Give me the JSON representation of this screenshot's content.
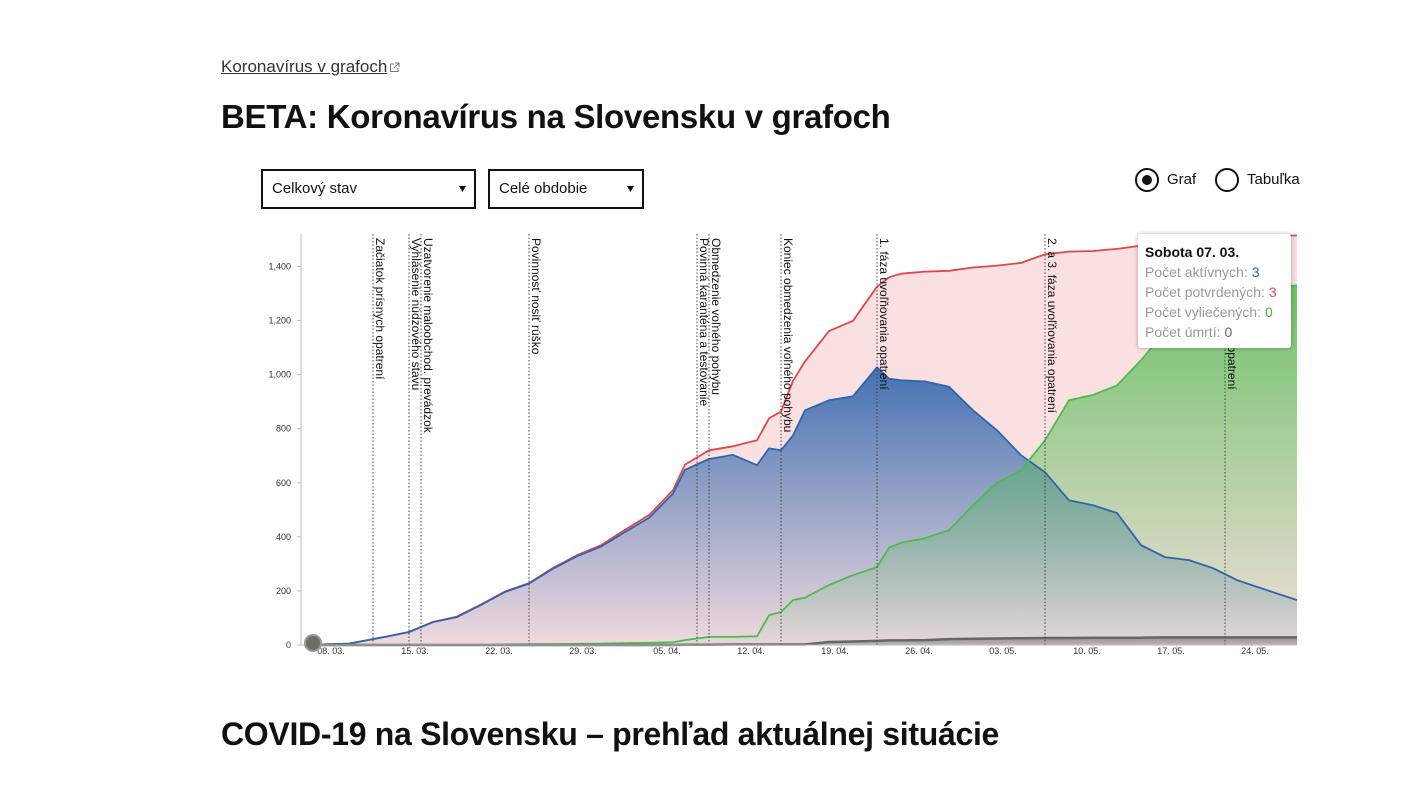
{
  "link": "Koronavírus v grafoch",
  "title": "BETA: Koronavírus na Slovensku v grafoch",
  "controls": {
    "selects": [
      "Celkový stav",
      "Celé obdobie"
    ],
    "radios": [
      {
        "label": "Graf",
        "checked": true
      },
      {
        "label": "Tabuľka",
        "checked": false
      }
    ]
  },
  "chart_data": {
    "type": "area",
    "x": [
      "06. 03.",
      "09. 03.",
      "12. 03.",
      "14. 03.",
      "16. 03.",
      "18. 03.",
      "20. 03.",
      "22. 03.",
      "24. 03.",
      "26. 03.",
      "28. 03.",
      "30. 03.",
      "01. 04.",
      "03. 04.",
      "05. 04.",
      "06. 04.",
      "08. 04.",
      "10. 04.",
      "12. 04.",
      "13. 04.",
      "14. 04.",
      "15. 04.",
      "16. 04.",
      "18. 04.",
      "20. 04.",
      "22. 04.",
      "23. 04.",
      "24. 04.",
      "26. 04.",
      "28. 04.",
      "30. 04.",
      "02. 05.",
      "04. 05.",
      "06. 05.",
      "08. 05.",
      "10. 05.",
      "12. 05.",
      "14. 05.",
      "16. 05.",
      "18. 05.",
      "20. 05.",
      "22. 05.",
      "24. 05.",
      "27. 05."
    ],
    "xlim": [
      "06. 03.",
      "27. 05."
    ],
    "xticks": [
      "08. 03.",
      "15. 03.",
      "22. 03.",
      "29. 03.",
      "05. 04.",
      "12. 04.",
      "19. 04.",
      "26. 04.",
      "03. 05.",
      "10. 05.",
      "17. 05.",
      "24. 05."
    ],
    "ylim": [
      0,
      1520
    ],
    "yticks": [
      0,
      200,
      400,
      600,
      800,
      {
        "value": 1000,
        "label": "1,000"
      },
      {
        "value": 1200,
        "label": "1,200"
      },
      {
        "value": 1400,
        "label": "1,400"
      }
    ],
    "series": [
      {
        "name": "Počet aktívnych:",
        "color": "#2f65ad",
        "values": [
          1,
          5,
          30,
          48,
          85,
          103,
          148,
          196,
          227,
          282,
          328,
          364,
          418,
          470,
          560,
          648,
          688,
          703,
          665,
          727,
          720,
          775,
          868,
          905,
          920,
          1027,
          985,
          979,
          975,
          955,
          868,
          794,
          702,
          639,
          535,
          517,
          488,
          369,
          325,
          314,
          284,
          240,
          210,
          166
        ]
      },
      {
        "name": "Počet potvrdených:",
        "color": "#e0474c",
        "values": [
          1,
          5,
          30,
          48,
          85,
          105,
          150,
          198,
          229,
          285,
          332,
          369,
          426,
          480,
          572,
          667,
          720,
          735,
          757,
          838,
          863,
          977,
          1049,
          1161,
          1199,
          1325,
          1360,
          1373,
          1381,
          1384,
          1396,
          1403,
          1413,
          1445,
          1455,
          1457,
          1465,
          1477,
          1494,
          1496,
          1502,
          1503,
          1509,
          1515
        ]
      },
      {
        "name": "Počet vyliečených:",
        "color": "#4dbb4d",
        "values": [
          0,
          0,
          0,
          0,
          0,
          0,
          0,
          2,
          3,
          3,
          4,
          5,
          7,
          8,
          10,
          18,
          30,
          30,
          32,
          110,
          122,
          166,
          175,
          222,
          258,
          288,
          360,
          378,
          395,
          425,
          517,
          600,
          646,
          757,
          905,
          925,
          960,
          1053,
          1160,
          1240,
          1270,
          1295,
          1315,
          1330
        ]
      },
      {
        "name": "Počet úmrtí:",
        "color": "#666666",
        "values": [
          0,
          0,
          0,
          0,
          0,
          0,
          0,
          0,
          0,
          0,
          0,
          0,
          0,
          0,
          0,
          1,
          1,
          2,
          2,
          2,
          2,
          2,
          2,
          11,
          13,
          15,
          17,
          17,
          18,
          22,
          23,
          24,
          25,
          26,
          26,
          27,
          27,
          27,
          28,
          28,
          28,
          28,
          28,
          28
        ]
      }
    ],
    "events": [
      {
        "date": "11. 03.",
        "label": "Začiatok prísnych opatrení"
      },
      {
        "date": "14. 03.",
        "label": "Vyhlásenie núdzového stavu"
      },
      {
        "date": "15. 03.",
        "label": "Uzatvorenie maloobchod. prevádzok"
      },
      {
        "date": "24. 03.",
        "label": "Povinnosť nosiť rúško"
      },
      {
        "date": "07. 04.",
        "label": "Povinná karanténa a testovanie"
      },
      {
        "date": "08. 04.",
        "label": "Obmedzenie voľného pohybu"
      },
      {
        "date": "14. 04.",
        "label": "Koniec obmedzenia voľného pohybu"
      },
      {
        "date": "22. 04.",
        "label": "1. fáza uvoľňovania opatrení"
      },
      {
        "date": "06. 05.",
        "label": "2. a 3. fáza uvoľňovania opatrení"
      },
      {
        "date": "21. 05.",
        "label": "4. fáza uvoľňovania opatrení"
      }
    ],
    "tooltip": {
      "title": "Sobota 07. 03.",
      "values": [
        3,
        3,
        0,
        0
      ]
    }
  },
  "section_title": "COVID-19 na Slovensku – prehľad aktuálnej situácie"
}
